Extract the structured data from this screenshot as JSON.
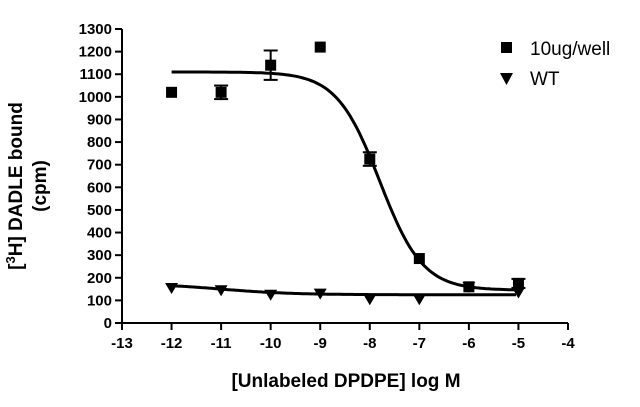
{
  "chart_data": {
    "type": "scatter",
    "xlabel": "[Unlabeled DPDPE] log M",
    "ylabel_line1_pre": "[",
    "ylabel_sup": "3",
    "ylabel_line1_post": "H] DADLE bound",
    "ylabel_line2": "(cpm)",
    "xlim": [
      -13,
      -4
    ],
    "ylim": [
      0,
      1300
    ],
    "xticks": [
      "-13",
      "-12",
      "-11",
      "-10",
      "-9",
      "-8",
      "-7",
      "-6",
      "-5",
      "-4"
    ],
    "yticks": [
      "0",
      "100",
      "200",
      "300",
      "400",
      "500",
      "600",
      "700",
      "800",
      "900",
      "1000",
      "1100",
      "1200",
      "1300"
    ],
    "grid": false,
    "legend_position": "top-right",
    "series": [
      {
        "name": "10ug/well",
        "marker": "square",
        "points": [
          {
            "x": -12,
            "y": 1020,
            "err": 0
          },
          {
            "x": -11,
            "y": 1020,
            "err": 30
          },
          {
            "x": -10,
            "y": 1140,
            "err": 65
          },
          {
            "x": -9,
            "y": 1220,
            "err": 0
          },
          {
            "x": -8,
            "y": 725,
            "err": 30
          },
          {
            "x": -7,
            "y": 285,
            "err": 0
          },
          {
            "x": -6,
            "y": 160,
            "err": 0
          },
          {
            "x": -5,
            "y": 175,
            "err": 20
          }
        ],
        "fit": {
          "top": 1110,
          "bottom": 145,
          "logIC50": -7.8,
          "hill": 1.0
        }
      },
      {
        "name": "WT",
        "marker": "triangle-down",
        "points": [
          {
            "x": -12,
            "y": 155,
            "err": 0
          },
          {
            "x": -11,
            "y": 145,
            "err": 0
          },
          {
            "x": -10,
            "y": 125,
            "err": 0
          },
          {
            "x": -9,
            "y": 130,
            "err": 0
          },
          {
            "x": -8,
            "y": 105,
            "err": 0
          },
          {
            "x": -7,
            "y": 105,
            "err": 0
          },
          {
            "x": -6,
            "y": 160,
            "err": 0
          },
          {
            "x": -5,
            "y": 135,
            "err": 0
          }
        ],
        "fit": {
          "top": 175,
          "bottom": 125,
          "logIC50": -11,
          "hill": 0.6
        }
      }
    ]
  }
}
